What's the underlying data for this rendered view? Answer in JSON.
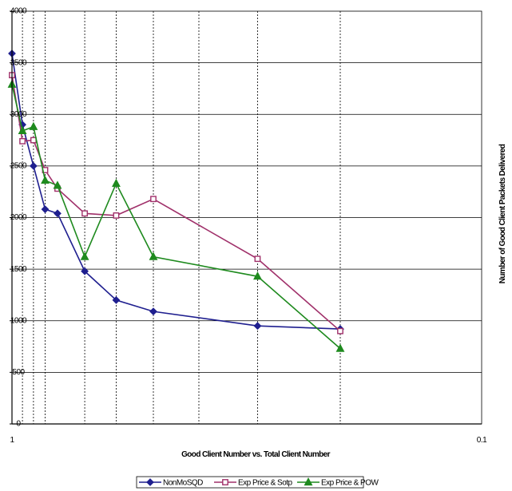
{
  "chart_data": {
    "type": "line",
    "title": "",
    "xlabel": "Good Client Number vs. Total Client Number",
    "ylabel": "Number of Good Client Packets Delivered",
    "x_scale": "log",
    "x_reversed": true,
    "xlim": [
      1,
      0.1
    ],
    "x_tick_labels": [
      "1",
      "0.1"
    ],
    "x_gridlines": [
      0.95,
      0.9,
      0.85,
      0.7,
      0.6,
      0.5,
      0.4,
      0.3,
      0.2
    ],
    "ylim": [
      0,
      4000
    ],
    "y_ticks": [
      0,
      500,
      1000,
      1500,
      2000,
      2500,
      3000,
      3500,
      4000
    ],
    "grid": true,
    "legend_position": "bottom",
    "series": [
      {
        "name": "NonMoSQD",
        "color": "#1f1f8f",
        "marker": "diamond",
        "x": [
          1.0,
          0.95,
          0.9,
          0.85,
          0.8,
          0.7,
          0.6,
          0.5,
          0.3,
          0.2
        ],
        "y": [
          3590,
          2900,
          2500,
          2080,
          2040,
          1480,
          1200,
          1090,
          950,
          920
        ]
      },
      {
        "name": "Exp Price & Sotp",
        "color": "#a0306a",
        "marker": "square-open",
        "x": [
          1.0,
          0.95,
          0.9,
          0.85,
          0.8,
          0.7,
          0.6,
          0.5,
          0.3,
          0.2
        ],
        "y": [
          3380,
          2740,
          2750,
          2460,
          2280,
          2040,
          2020,
          2180,
          1600,
          900
        ]
      },
      {
        "name": "Exp Price & POW",
        "color": "#1e8a1e",
        "marker": "triangle",
        "x": [
          1.0,
          0.95,
          0.9,
          0.85,
          0.8,
          0.7,
          0.6,
          0.5,
          0.3,
          0.2
        ],
        "y": [
          3290,
          2840,
          2880,
          2360,
          2310,
          1620,
          2330,
          1620,
          1430,
          730
        ]
      }
    ]
  }
}
